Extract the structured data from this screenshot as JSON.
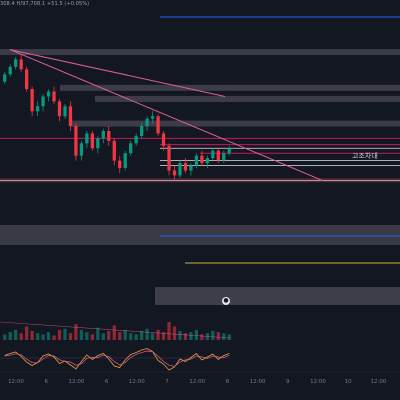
{
  "header": {
    "ohlc_text": "308.4 H/97,708.1 +51.5 (+0.05%)"
  },
  "zone_label": "고조차대",
  "colors": {
    "background": "#131722",
    "up": "#089981",
    "down": "#f23645",
    "trendline": "#e0609a",
    "blue_line": "#2962ff",
    "yellow_line": "#c9b23a",
    "zone_fill": "#4a4a55",
    "red_level": "#c2185b",
    "white_level": "#e0e0e0",
    "osc_signal": "#e0609a",
    "osc_line": "#f0a030"
  },
  "chart_data": {
    "type": "candlestick",
    "x_tick_labels": [
      "12:00",
      "6",
      "12:00",
      "6",
      "12:00",
      "7",
      "12:00",
      "8",
      "12:00",
      "9",
      "12:00",
      "10",
      "12:00"
    ],
    "candles": [
      [
        100,
        104,
        99,
        103
      ],
      [
        103,
        107,
        102,
        106
      ],
      [
        106,
        110,
        105,
        109
      ],
      [
        109,
        111,
        104,
        105
      ],
      [
        105,
        106,
        96,
        97
      ],
      [
        97,
        98,
        86,
        88
      ],
      [
        88,
        92,
        86,
        90
      ],
      [
        90,
        95,
        88,
        94
      ],
      [
        94,
        97,
        92,
        96
      ],
      [
        96,
        98,
        91,
        92
      ],
      [
        92,
        93,
        84,
        86
      ],
      [
        86,
        91,
        85,
        90
      ],
      [
        90,
        92,
        80,
        82
      ],
      [
        82,
        83,
        68,
        70
      ],
      [
        70,
        76,
        68,
        75
      ],
      [
        75,
        80,
        73,
        79
      ],
      [
        79,
        80,
        72,
        73
      ],
      [
        73,
        78,
        71,
        77
      ],
      [
        77,
        81,
        75,
        80
      ],
      [
        80,
        82,
        74,
        76
      ],
      [
        76,
        77,
        66,
        68
      ],
      [
        68,
        70,
        63,
        65
      ],
      [
        65,
        72,
        64,
        71
      ],
      [
        71,
        76,
        70,
        75
      ],
      [
        75,
        79,
        74,
        78
      ],
      [
        78,
        83,
        77,
        82
      ],
      [
        82,
        86,
        80,
        85
      ],
      [
        85,
        88,
        83,
        86
      ],
      [
        86,
        87,
        78,
        79
      ],
      [
        79,
        80,
        72,
        74
      ],
      [
        74,
        75,
        62,
        64
      ],
      [
        64,
        66,
        60,
        62
      ],
      [
        62,
        68,
        61,
        67
      ],
      [
        67,
        69,
        63,
        64
      ],
      [
        64,
        67,
        62,
        66
      ],
      [
        66,
        71,
        65,
        70
      ],
      [
        70,
        72,
        66,
        67
      ],
      [
        67,
        70,
        65,
        69
      ],
      [
        69,
        73,
        68,
        72
      ],
      [
        72,
        73,
        67,
        68
      ],
      [
        68,
        72,
        67,
        71
      ],
      [
        71,
        74,
        70,
        73
      ]
    ],
    "volume": [
      5,
      7,
      9,
      6,
      12,
      8,
      6,
      5,
      7,
      4,
      9,
      10,
      6,
      14,
      9,
      7,
      5,
      11,
      6,
      8,
      13,
      7,
      9,
      6,
      5,
      8,
      10,
      6,
      9,
      7,
      16,
      12,
      8,
      6,
      7,
      9,
      5,
      6,
      8,
      7,
      6,
      5
    ],
    "oscillator": [
      0.5,
      0.9,
      1.2,
      0.3,
      -0.8,
      -1.5,
      -0.9,
      0.4,
      0.8,
      0.2,
      -1.1,
      -0.6,
      -1.4,
      -2.2,
      -0.7,
      0.6,
      -0.3,
      0.5,
      0.9,
      -0.2,
      -1.6,
      -1.9,
      -0.4,
      0.7,
      1.1,
      1.6,
      1.9,
      1.3,
      -0.5,
      -1.2,
      -2.4,
      -1.8,
      -0.2,
      -0.7,
      0.1,
      0.9,
      -0.4,
      0.2,
      0.8,
      -0.3,
      0.5,
      0.9
    ],
    "y_range": [
      50,
      125
    ],
    "horizontal_levels": [
      {
        "value": 112,
        "kind": "zone",
        "span": [
          0,
          400
        ]
      },
      {
        "value": 97.5,
        "kind": "zone",
        "span": [
          60,
          400
        ]
      },
      {
        "value": 93,
        "kind": "zone",
        "span": [
          95,
          400
        ]
      },
      {
        "value": 83,
        "kind": "zone",
        "span": [
          70,
          400
        ]
      },
      {
        "value": 77,
        "kind": "red",
        "span": [
          0,
          400
        ]
      },
      {
        "value": 74.5,
        "kind": "red",
        "span": [
          160,
          400
        ]
      },
      {
        "value": 73,
        "kind": "white",
        "span": [
          160,
          400
        ]
      },
      {
        "value": 71,
        "kind": "red",
        "span": [
          200,
          400
        ]
      },
      {
        "value": 68,
        "kind": "white",
        "span": [
          160,
          400
        ]
      },
      {
        "value": 66,
        "kind": "white",
        "span": [
          160,
          400
        ]
      },
      {
        "value": 60,
        "kind": "redzone",
        "span": [
          0,
          400
        ]
      }
    ],
    "trendlines": [
      {
        "from": [
          8,
          113
        ],
        "to": [
          322,
          60
        ]
      },
      {
        "from": [
          8,
          113
        ],
        "to": [
          225,
          94
        ]
      }
    ]
  }
}
